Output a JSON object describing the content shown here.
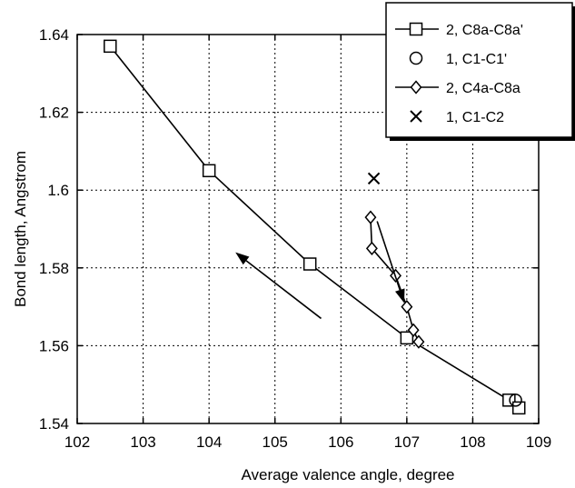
{
  "chart_data": {
    "type": "scatter",
    "title": "",
    "xlabel": "Average valence angle, degree",
    "ylabel": "Bond length, Angstrom",
    "xlim": [
      102,
      109
    ],
    "ylim": [
      1.54,
      1.64
    ],
    "xticks": [
      "102",
      "103",
      "104",
      "105",
      "106",
      "107",
      "108",
      "109"
    ],
    "yticks": [
      "1.54",
      "1.56",
      "1.58",
      "1.6",
      "1.62",
      "1.64"
    ],
    "grid": true,
    "legend_position": "top-right",
    "series": [
      {
        "name": "2, C8a-C8a'",
        "marker": "square",
        "line": true,
        "points": [
          [
            102.5,
            1.637
          ],
          [
            104.0,
            1.605
          ],
          [
            105.53,
            1.581
          ],
          [
            107.0,
            1.562
          ],
          [
            108.55,
            1.546
          ],
          [
            108.7,
            1.544
          ]
        ]
      },
      {
        "name": "1, C1-C1'",
        "marker": "circle",
        "line": false,
        "points": [
          [
            108.65,
            1.546
          ]
        ]
      },
      {
        "name": "2, C4a-C8a",
        "marker": "diamond",
        "line": true,
        "points": [
          [
            106.45,
            1.593
          ],
          [
            106.47,
            1.585
          ],
          [
            106.83,
            1.578
          ],
          [
            107.0,
            1.57
          ],
          [
            107.1,
            1.564
          ],
          [
            107.18,
            1.561
          ]
        ]
      },
      {
        "name": "1, C1-C2",
        "marker": "x",
        "line": false,
        "points": [
          [
            106.5,
            1.603
          ]
        ]
      }
    ],
    "arrows": [
      {
        "from": [
          105.7,
          1.567
        ],
        "to": [
          104.4,
          1.584
        ]
      },
      {
        "from": [
          106.55,
          1.592
        ],
        "to": [
          106.96,
          1.571
        ]
      }
    ]
  }
}
